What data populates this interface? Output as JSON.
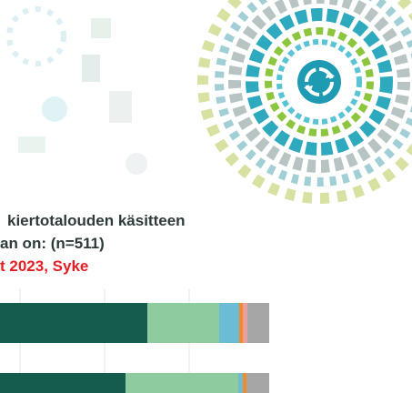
{
  "slide": {
    "heading_lines": [
      "kiertotalouden käsitteen",
      "an on: (n=511)"
    ],
    "source": "t 2023, Syke"
  }
}
